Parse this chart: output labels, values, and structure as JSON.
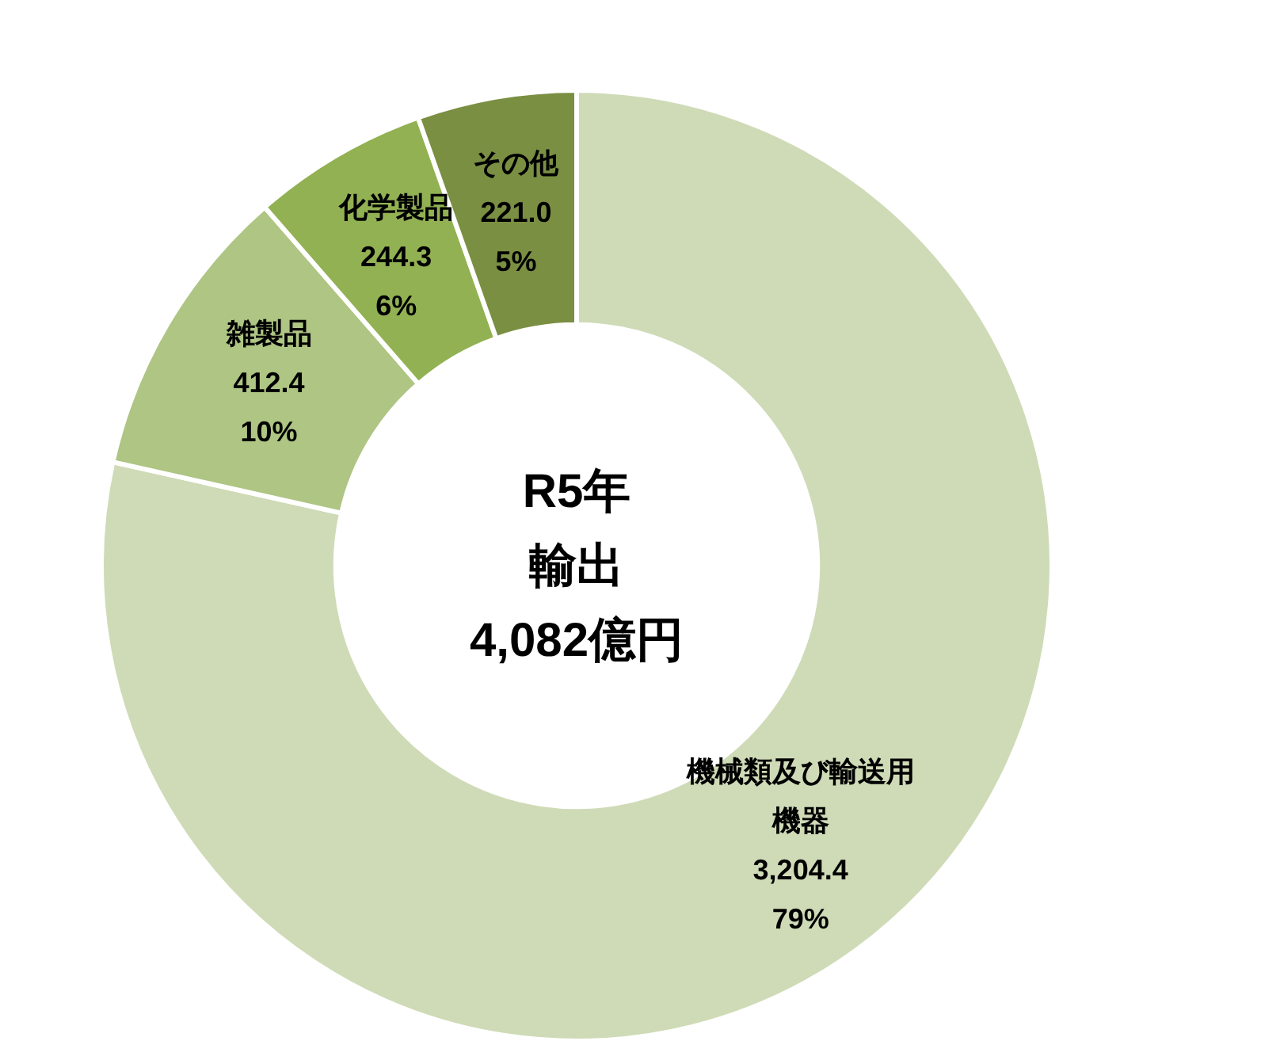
{
  "chart_data": {
    "type": "donut",
    "title": "R5年",
    "subtitle": "輸出",
    "annotations": [
      "4,082億円"
    ],
    "categories": [
      "機械類及び輸送用機器",
      "雑製品",
      "化学製品",
      "その他"
    ],
    "values": [
      3204.4,
      412.4,
      244.3,
      221.0
    ],
    "value_labels": [
      "3,204.4\n79%",
      "412.4\n10%",
      "244.3\n6%",
      "221.0\n5%"
    ],
    "colors": [
      "#cfdbb7",
      "#aec583",
      "#92b153",
      "#7a8f42"
    ]
  }
}
